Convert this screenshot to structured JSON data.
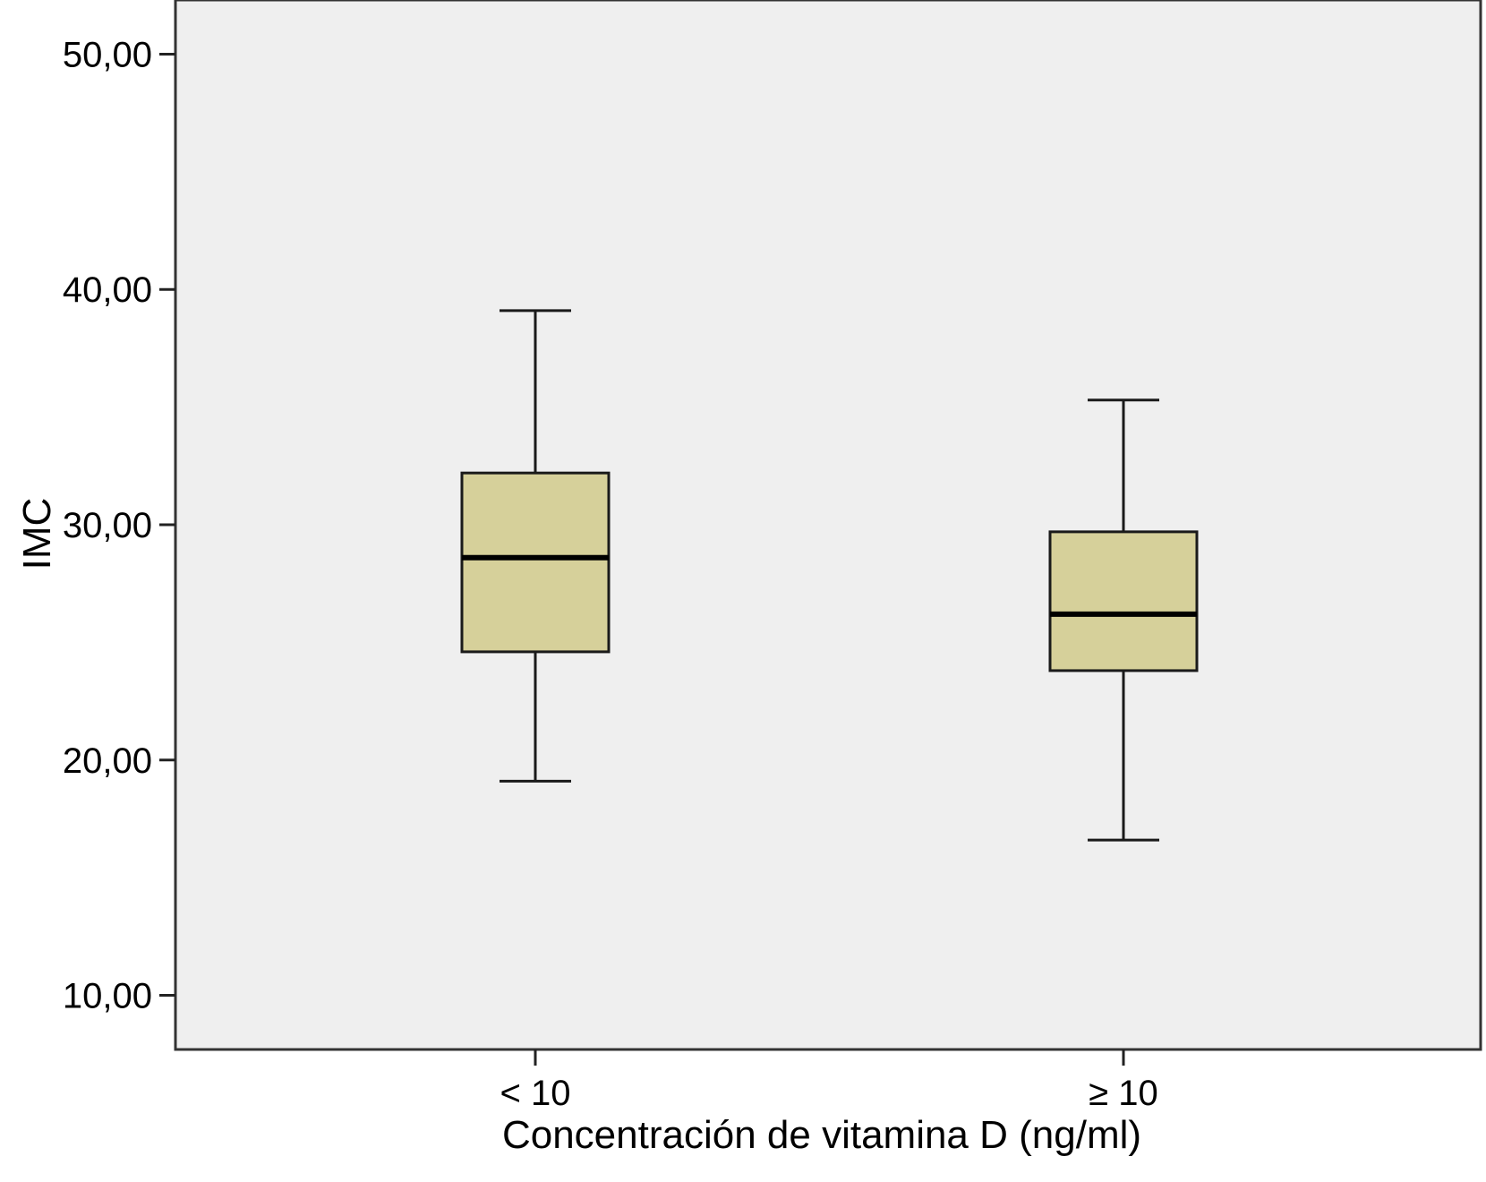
{
  "chart_data": {
    "type": "boxplot",
    "title": "",
    "xlabel": "Concentración de vitamina D (ng/ml)",
    "ylabel": "IMC",
    "ylim": [
      7.7,
      52.3
    ],
    "yticks": [
      10,
      20,
      30,
      40,
      50
    ],
    "ytick_labels": [
      "10,00",
      "20,00",
      "30,00",
      "40,00",
      "50,00"
    ],
    "grid": false,
    "categories": [
      "< 10",
      "≥ 10"
    ],
    "boxes": [
      {
        "category": "< 10",
        "whisker_low": 19.1,
        "q1": 24.6,
        "median": 28.6,
        "q3": 32.2,
        "whisker_high": 39.1
      },
      {
        "category": "≥ 10",
        "whisker_low": 16.6,
        "q1": 23.8,
        "median": 26.2,
        "q3": 29.7,
        "whisker_high": 35.3
      }
    ],
    "colors": {
      "plot_background": "#efefef",
      "box_fill": "#d6d09a",
      "line": "#1a1a1a",
      "median": "#000000"
    }
  }
}
